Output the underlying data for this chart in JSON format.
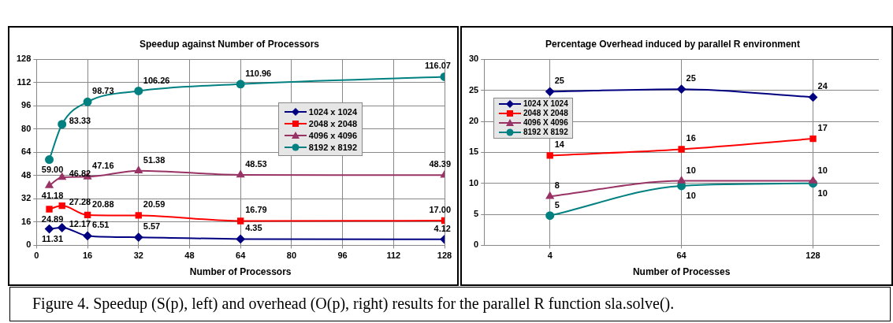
{
  "chart_data": [
    {
      "type": "line",
      "title": "Speedup against Number of Processors",
      "xlabel": "Number of Processors",
      "x": [
        4,
        8,
        16,
        32,
        64,
        128
      ],
      "xlim": [
        0,
        128
      ],
      "xticks": [
        0,
        16,
        32,
        48,
        64,
        80,
        96,
        112,
        128
      ],
      "ylim": [
        0,
        128
      ],
      "yticks": [
        0,
        16,
        32,
        48,
        64,
        80,
        96,
        112,
        128
      ],
      "grid": true,
      "legend": "right",
      "data_labels": true,
      "annotations": [
        "Figure 4. Speedup (S(p), left) and overhead (O(p), right) results for the parallel R function sla.solve()."
      ],
      "series": [
        {
          "name": "1024 x 1024",
          "color": "#000080",
          "marker": "diamond",
          "values": [
            11.31,
            12.17,
            6.51,
            5.57,
            4.35,
            4.12
          ]
        },
        {
          "name": "2048 x 2048",
          "color": "#ff0000",
          "marker": "square",
          "values": [
            24.89,
            27.28,
            20.88,
            20.59,
            16.79,
            17.0
          ],
          "value_labels": [
            "24.89",
            "27.28",
            "20.88",
            "20.59",
            "16.79",
            "17.00"
          ]
        },
        {
          "name": "4096 x 4096",
          "color": "#993366",
          "marker": "triangle",
          "values": [
            41.18,
            46.82,
            47.16,
            51.38,
            48.53,
            48.39
          ]
        },
        {
          "name": "8192 x 8192",
          "color": "#008080",
          "marker": "circle",
          "values": [
            59.0,
            83.33,
            98.73,
            106.26,
            110.96,
            116.07
          ],
          "value_labels": [
            "59.00",
            "83.33",
            "98.73",
            "106.26",
            "110.96",
            "116.07"
          ]
        }
      ]
    },
    {
      "type": "line",
      "title": "Percentage Overhead induced by parallel R environment",
      "xlabel": "Number of Processes",
      "categories": [
        "4",
        "64",
        "128"
      ],
      "ylim": [
        0,
        30
      ],
      "yticks": [
        0,
        5,
        10,
        15,
        20,
        25,
        30
      ],
      "grid": true,
      "legend": "top left",
      "series": [
        {
          "name": "1024 X 1024",
          "color": "#000080",
          "marker": "diamond",
          "values": [
            24.8,
            25.2,
            23.9
          ],
          "value_labels": [
            "25",
            "25",
            "24"
          ]
        },
        {
          "name": "2048 X 2048",
          "color": "#ff0000",
          "marker": "square",
          "values": [
            14.5,
            15.5,
            17.2
          ],
          "value_labels": [
            "14",
            "16",
            "17"
          ]
        },
        {
          "name": "4096 X 4096",
          "color": "#993366",
          "marker": "triangle",
          "values": [
            7.9,
            10.4,
            10.4
          ],
          "value_labels": [
            "8",
            "10",
            "10"
          ]
        },
        {
          "name": "8192 X 8192",
          "color": "#008080",
          "marker": "circle",
          "values": [
            4.8,
            9.6,
            10.0
          ],
          "value_labels": [
            "5",
            "10",
            "10"
          ]
        }
      ]
    }
  ]
}
